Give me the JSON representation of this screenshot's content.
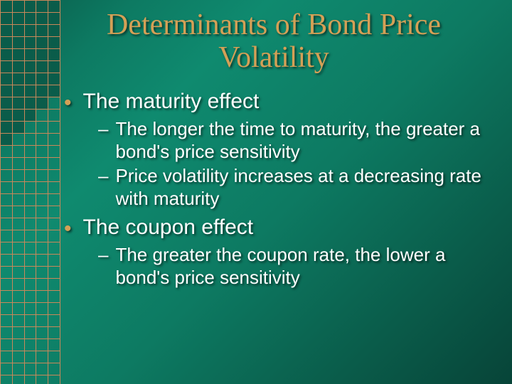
{
  "slide": {
    "title": "Determinants of Bond Price Volatility",
    "title_color": "#d4a056",
    "title_fontsize": 42,
    "title_font_family": "Garamond, Georgia, serif",
    "body_font_family": "Arial, Helvetica, sans-serif",
    "background_gradient": [
      "#0a5c4a",
      "#0d7a62",
      "#0f8a6f",
      "#0d7a62",
      "#0a5c4a",
      "#074438"
    ],
    "text_color": "#ffffff",
    "bullet_accent_color": "#d4a056",
    "shadow_color": "rgba(0,0,0,0.6)",
    "bullets": [
      {
        "level": 1,
        "text": "The maturity effect",
        "fontsize": 30,
        "children": [
          {
            "level": 2,
            "text": "The longer the time to maturity, the greater a bond's price sensitivity",
            "fontsize": 26
          },
          {
            "level": 2,
            "text": "Price volatility increases at a decreasing rate with maturity",
            "fontsize": 26
          }
        ]
      },
      {
        "level": 1,
        "text": "The coupon effect",
        "fontsize": 30,
        "children": [
          {
            "level": 2,
            "text": "The greater the coupon rate, the lower a bond's price sensitivity",
            "fontsize": 26
          }
        ]
      }
    ]
  },
  "grid_deco": {
    "cell_size": 17,
    "cols": 5,
    "border_color": "#c9885a",
    "fill_color": "#0a5c4a",
    "top_filled_rows": 8,
    "staircase_rows": 5,
    "total_rows": 32
  }
}
